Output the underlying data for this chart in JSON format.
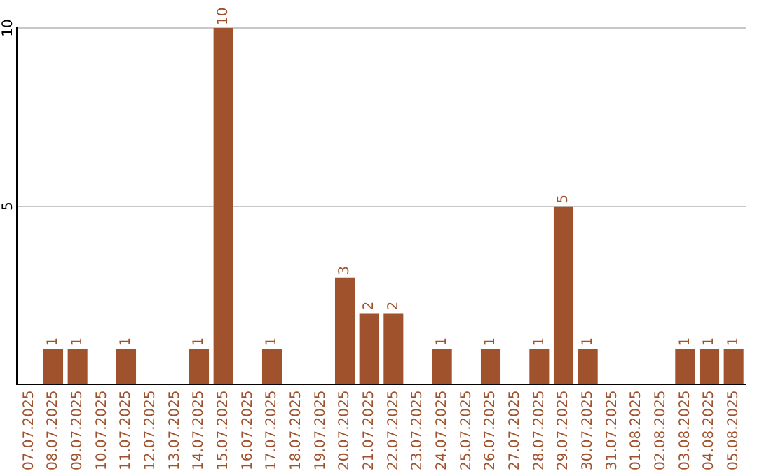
{
  "chart_data": {
    "type": "bar",
    "categories": [
      "07.07.2025",
      "08.07.2025",
      "09.07.2025",
      "10.07.2025",
      "11.07.2025",
      "12.07.2025",
      "13.07.2025",
      "14.07.2025",
      "15.07.2025",
      "16.07.2025",
      "17.07.2025",
      "18.07.2025",
      "19.07.2025",
      "20.07.2025",
      "21.07.2025",
      "22.07.2025",
      "23.07.2025",
      "24.07.2025",
      "25.07.2025",
      "26.07.2025",
      "27.07.2025",
      "28.07.2025",
      "29.07.2025",
      "30.07.2025",
      "31.07.2025",
      "01.08.2025",
      "02.08.2025",
      "03.08.2025",
      "04.08.2025",
      "05.08.2025"
    ],
    "values": [
      0,
      1,
      1,
      0,
      1,
      0,
      0,
      1,
      10,
      0,
      1,
      0,
      0,
      3,
      2,
      2,
      0,
      1,
      0,
      1,
      0,
      1,
      5,
      1,
      0,
      0,
      0,
      1,
      1,
      1
    ],
    "value_labels": [
      null,
      "1",
      "1",
      null,
      "1",
      null,
      null,
      "1",
      "10",
      null,
      "1",
      null,
      null,
      "3",
      "2",
      "2",
      null,
      "1",
      null,
      "1",
      null,
      "1",
      "5",
      "1",
      null,
      null,
      null,
      "1",
      "1",
      "1"
    ],
    "color": "#a0522d",
    "ylim": [
      0,
      10
    ],
    "yticks": [
      {
        "value": 0,
        "label": null
      },
      5,
      10
    ],
    "grid": "y",
    "legend": false
  }
}
